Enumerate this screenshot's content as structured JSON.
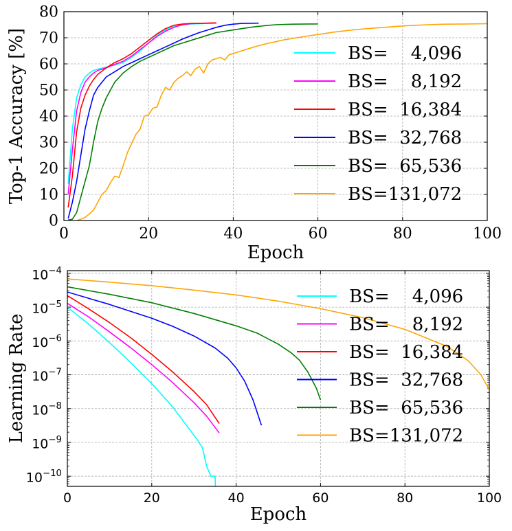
{
  "chart_data": [
    {
      "type": "line",
      "xlabel": "Epoch",
      "ylabel": "Top-1 Accuracy [%]",
      "xlim": [
        0,
        100
      ],
      "ylim": [
        0,
        80
      ],
      "xticks": [
        "0",
        "20",
        "40",
        "60",
        "80",
        "100"
      ],
      "yticks": [
        "0",
        "10",
        "20",
        "30",
        "40",
        "50",
        "60",
        "70",
        "80"
      ],
      "grid": true,
      "legend": "right",
      "series": [
        {
          "name": "BS=    4,096",
          "color": "#00ffff",
          "points": [
            [
              1,
              14
            ],
            [
              2,
              35
            ],
            [
              3,
              47
            ],
            [
              4,
              52
            ],
            [
              5,
              55
            ],
            [
              6,
              56.5
            ],
            [
              7,
              57.5
            ],
            [
              8,
              58
            ],
            [
              10,
              58.8
            ],
            [
              12,
              59.5
            ],
            [
              14,
              60.5
            ],
            [
              16,
              62.5
            ],
            [
              18,
              65
            ],
            [
              20,
              68
            ],
            [
              22,
              71
            ],
            [
              24,
              73
            ],
            [
              26,
              74.3
            ],
            [
              28,
              75
            ],
            [
              30,
              75.3
            ],
            [
              34,
              75.5
            ],
            [
              36,
              75.6
            ]
          ]
        },
        {
          "name": "BS=    8,192",
          "color": "#ff00ff",
          "points": [
            [
              1,
              10
            ],
            [
              2,
              27
            ],
            [
              3,
              42
            ],
            [
              4,
              49
            ],
            [
              5,
              53
            ],
            [
              6,
              55
            ],
            [
              7,
              56.5
            ],
            [
              8,
              57.5
            ],
            [
              10,
              58.5
            ],
            [
              12,
              59.8
            ],
            [
              14,
              61
            ],
            [
              16,
              63
            ],
            [
              18,
              65.5
            ],
            [
              20,
              68
            ],
            [
              22,
              70.5
            ],
            [
              24,
              72.5
            ],
            [
              26,
              74
            ],
            [
              28,
              75
            ],
            [
              30,
              75.4
            ],
            [
              34,
              75.6
            ],
            [
              36,
              75.7
            ]
          ]
        },
        {
          "name": "BS=  16,384",
          "color": "#ff0000",
          "points": [
            [
              1,
              5
            ],
            [
              2,
              17
            ],
            [
              3,
              34
            ],
            [
              4,
              43
            ],
            [
              5,
              48
            ],
            [
              6,
              51.5
            ],
            [
              7,
              54
            ],
            [
              8,
              56
            ],
            [
              10,
              58.5
            ],
            [
              12,
              60.5
            ],
            [
              14,
              62
            ],
            [
              16,
              64
            ],
            [
              18,
              66.5
            ],
            [
              20,
              69
            ],
            [
              22,
              71.5
            ],
            [
              24,
              73.5
            ],
            [
              26,
              74.8
            ],
            [
              28,
              75.3
            ],
            [
              30,
              75.5
            ],
            [
              34,
              75.6
            ],
            [
              36,
              75.7
            ]
          ]
        },
        {
          "name": "BS=  32,768",
          "color": "#0000ff",
          "points": [
            [
              1,
              0.8
            ],
            [
              2,
              7
            ],
            [
              3,
              15
            ],
            [
              4,
              25
            ],
            [
              5,
              35
            ],
            [
              6,
              42
            ],
            [
              7,
              48
            ],
            [
              8,
              51
            ],
            [
              9,
              53
            ],
            [
              10,
              55
            ],
            [
              12,
              57
            ],
            [
              14,
              59
            ],
            [
              16,
              60.5
            ],
            [
              18,
              62
            ],
            [
              20,
              63.5
            ],
            [
              22,
              65
            ],
            [
              24,
              66.5
            ],
            [
              26,
              68
            ],
            [
              28,
              69.5
            ],
            [
              30,
              70.8
            ],
            [
              32,
              72
            ],
            [
              34,
              73
            ],
            [
              36,
              74
            ],
            [
              38,
              74.8
            ],
            [
              40,
              75.2
            ],
            [
              42,
              75.5
            ],
            [
              46,
              75.6
            ]
          ]
        },
        {
          "name": "BS=  65,536",
          "color": "#008000",
          "points": [
            [
              1,
              0.2
            ],
            [
              2,
              0.5
            ],
            [
              3,
              3
            ],
            [
              4,
              9
            ],
            [
              5,
              15
            ],
            [
              6,
              21
            ],
            [
              7,
              30
            ],
            [
              8,
              38
            ],
            [
              9,
              43
            ],
            [
              10,
              47
            ],
            [
              11,
              50
            ],
            [
              12,
              53
            ],
            [
              14,
              56.5
            ],
            [
              16,
              59
            ],
            [
              18,
              61
            ],
            [
              20,
              62.5
            ],
            [
              22,
              64
            ],
            [
              24,
              65.5
            ],
            [
              26,
              67
            ],
            [
              28,
              68
            ],
            [
              30,
              69
            ],
            [
              32,
              70
            ],
            [
              34,
              71
            ],
            [
              36,
              72
            ],
            [
              38,
              72.5
            ],
            [
              40,
              73
            ],
            [
              42,
              73.5
            ],
            [
              44,
              74
            ],
            [
              46,
              74.4
            ],
            [
              48,
              74.7
            ],
            [
              50,
              75
            ],
            [
              54,
              75.2
            ],
            [
              58,
              75.3
            ],
            [
              60,
              75.3
            ]
          ]
        },
        {
          "name": "BS=131,072",
          "color": "#ffa500",
          "points": [
            [
              3,
              0
            ],
            [
              4,
              0.5
            ],
            [
              5,
              1.2
            ],
            [
              6,
              2.5
            ],
            [
              7,
              4
            ],
            [
              8,
              7
            ],
            [
              9,
              10
            ],
            [
              10,
              11.5
            ],
            [
              11,
              14.5
            ],
            [
              12,
              17
            ],
            [
              13,
              16.5
            ],
            [
              14,
              21
            ],
            [
              15,
              26
            ],
            [
              16,
              29.5
            ],
            [
              17,
              33
            ],
            [
              18,
              35
            ],
            [
              19,
              40
            ],
            [
              20,
              40.5
            ],
            [
              21,
              43
            ],
            [
              22,
              43.5
            ],
            [
              23,
              48
            ],
            [
              24,
              51
            ],
            [
              25,
              50
            ],
            [
              26,
              53
            ],
            [
              27,
              54.5
            ],
            [
              28,
              55.5
            ],
            [
              29,
              57
            ],
            [
              30,
              55.5
            ],
            [
              31,
              58
            ],
            [
              32,
              59
            ],
            [
              33,
              56.5
            ],
            [
              34,
              60
            ],
            [
              35,
              61.5
            ],
            [
              36,
              62
            ],
            [
              37,
              62.5
            ],
            [
              38,
              61.5
            ],
            [
              39,
              63.5
            ],
            [
              40,
              64
            ],
            [
              42,
              65
            ],
            [
              44,
              66
            ],
            [
              46,
              67
            ],
            [
              48,
              67.8
            ],
            [
              50,
              68.5
            ],
            [
              52,
              69.2
            ],
            [
              55,
              70
            ],
            [
              58,
              70.8
            ],
            [
              61,
              71.5
            ],
            [
              64,
              72.2
            ],
            [
              67,
              72.8
            ],
            [
              70,
              73.3
            ],
            [
              74,
              73.8
            ],
            [
              78,
              74.3
            ],
            [
              82,
              74.7
            ],
            [
              86,
              75
            ],
            [
              90,
              75.2
            ],
            [
              95,
              75.3
            ],
            [
              100,
              75.4
            ]
          ]
        }
      ]
    },
    {
      "type": "line",
      "xlabel": "Epoch",
      "ylabel": "Learning Rate",
      "xlim": [
        0,
        100
      ],
      "yscale": "log",
      "ylim": [
        5e-11,
        0.00012
      ],
      "xticks": [
        "0",
        "20",
        "40",
        "60",
        "80",
        "100"
      ],
      "yticks": [
        {
          "base": "10",
          "exp": "−10",
          "value": 1e-10
        },
        {
          "base": "10",
          "exp": "−9",
          "value": 1e-09
        },
        {
          "base": "10",
          "exp": "−8",
          "value": 1e-08
        },
        {
          "base": "10",
          "exp": "−7",
          "value": 1e-07
        },
        {
          "base": "10",
          "exp": "−6",
          "value": 1e-06
        },
        {
          "base": "10",
          "exp": "−5",
          "value": 1e-05
        },
        {
          "base": "10",
          "exp": "−4",
          "value": 0.0001
        }
      ],
      "grid": true,
      "legend": "right",
      "series": [
        {
          "name": "BS=    4,096",
          "color": "#00ffff",
          "points": [
            [
              0,
              1e-05
            ],
            [
              5,
              3.2e-06
            ],
            [
              10,
              8.9e-07
            ],
            [
              15,
              2.3e-07
            ],
            [
              20,
              5.5e-08
            ],
            [
              25,
              1.1e-08
            ],
            [
              28,
              3.5e-09
            ],
            [
              31,
              1.1e-09
            ],
            [
              32,
              7e-10
            ],
            [
              33,
              2e-10
            ],
            [
              34,
              1e-10
            ],
            [
              35,
              1e-10
            ],
            [
              35.1,
              5e-11
            ]
          ]
        },
        {
          "name": "BS=    8,192",
          "color": "#ff00ff",
          "points": [
            [
              0,
              1.3e-05
            ],
            [
              5,
              5.2e-06
            ],
            [
              10,
              1.85e-06
            ],
            [
              15,
              6.3e-07
            ],
            [
              20,
              2e-07
            ],
            [
              25,
              5.8e-08
            ],
            [
              30,
              1.5e-08
            ],
            [
              33,
              6e-09
            ],
            [
              36,
              1.9e-09
            ]
          ]
        },
        {
          "name": "BS=  16,384",
          "color": "#ff0000",
          "points": [
            [
              0,
              2.2e-05
            ],
            [
              5,
              9e-06
            ],
            [
              10,
              3.5e-06
            ],
            [
              15,
              1.25e-06
            ],
            [
              20,
              4e-07
            ],
            [
              25,
              1.2e-07
            ],
            [
              30,
              3.2e-08
            ],
            [
              33,
              1.3e-08
            ],
            [
              36,
              3.6e-09
            ]
          ]
        },
        {
          "name": "BS=  32,768",
          "color": "#0000ff",
          "points": [
            [
              0,
              2.8e-05
            ],
            [
              10,
              1.2e-05
            ],
            [
              20,
              4.7e-06
            ],
            [
              25,
              2.7e-06
            ],
            [
              30,
              1.4e-06
            ],
            [
              35,
              6.2e-07
            ],
            [
              38,
              3.1e-07
            ],
            [
              40,
              1.6e-07
            ],
            [
              42,
              6.5e-08
            ],
            [
              44,
              1.8e-08
            ],
            [
              46,
              3.2e-09
            ]
          ]
        },
        {
          "name": "BS=  65,536",
          "color": "#008000",
          "points": [
            [
              0,
              4e-05
            ],
            [
              10,
              2.4e-05
            ],
            [
              20,
              1.35e-05
            ],
            [
              30,
              6.5e-06
            ],
            [
              40,
              2.8e-06
            ],
            [
              45,
              1.7e-06
            ],
            [
              50,
              8e-07
            ],
            [
              53,
              4.5e-07
            ],
            [
              55,
              2.7e-07
            ],
            [
              57,
              1.2e-07
            ],
            [
              58,
              7e-08
            ],
            [
              59,
              4e-08
            ],
            [
              60,
              1.8e-08
            ]
          ]
        },
        {
          "name": "BS=131,072",
          "color": "#ffa500",
          "points": [
            [
              0,
              6.8e-05
            ],
            [
              10,
              5.5e-05
            ],
            [
              20,
              4.3e-05
            ],
            [
              30,
              3.2e-05
            ],
            [
              40,
              2.3e-05
            ],
            [
              50,
              1.5e-05
            ],
            [
              60,
              9e-06
            ],
            [
              70,
              4.9e-06
            ],
            [
              80,
              2.2e-06
            ],
            [
              90,
              6.9e-07
            ],
            [
              95,
              2.6e-07
            ],
            [
              98,
              1e-07
            ],
            [
              100,
              3.6e-08
            ]
          ]
        }
      ]
    }
  ]
}
